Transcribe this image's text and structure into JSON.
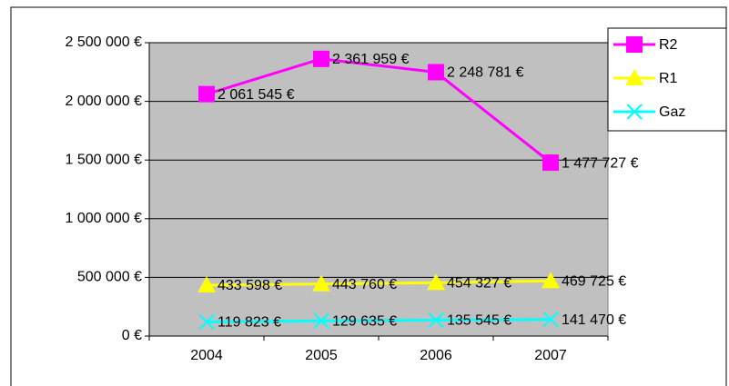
{
  "chart_data": {
    "type": "line",
    "categories": [
      "2004",
      "2005",
      "2006",
      "2007"
    ],
    "series": [
      {
        "name": "R2",
        "color": "#ff00ff",
        "marker": "square",
        "values": [
          2061545,
          2361959,
          2248781,
          1477727
        ],
        "value_labels": [
          "2 061 545 €",
          "2 361 959 €",
          "2 248 781 €",
          "1 477 727 €"
        ]
      },
      {
        "name": "R1",
        "color": "#ffff00",
        "marker": "triangle",
        "values": [
          433598,
          443760,
          454327,
          469725
        ],
        "value_labels": [
          "433 598 €",
          "443 760 €",
          "454 327 €",
          "469 725 €"
        ]
      },
      {
        "name": "Gaz",
        "color": "#00ffff",
        "marker": "x",
        "values": [
          119823,
          129635,
          135545,
          141470
        ],
        "value_labels": [
          "119 823 €",
          "129 635 €",
          "135 545 €",
          "141 470 €"
        ]
      }
    ],
    "ylim": [
      0,
      2500000
    ],
    "yticks": [
      {
        "value": 0,
        "label": "0 €"
      },
      {
        "value": 500000,
        "label": "500 000 €"
      },
      {
        "value": 1000000,
        "label": "1 000 000 €"
      },
      {
        "value": 1500000,
        "label": "1 500 000 €"
      },
      {
        "value": 2000000,
        "label": "2 000 000 €"
      },
      {
        "value": 2500000,
        "label": "2 500 000 €"
      }
    ],
    "grid": true,
    "plot_background": "#c0c0c0",
    "legend": "right"
  }
}
